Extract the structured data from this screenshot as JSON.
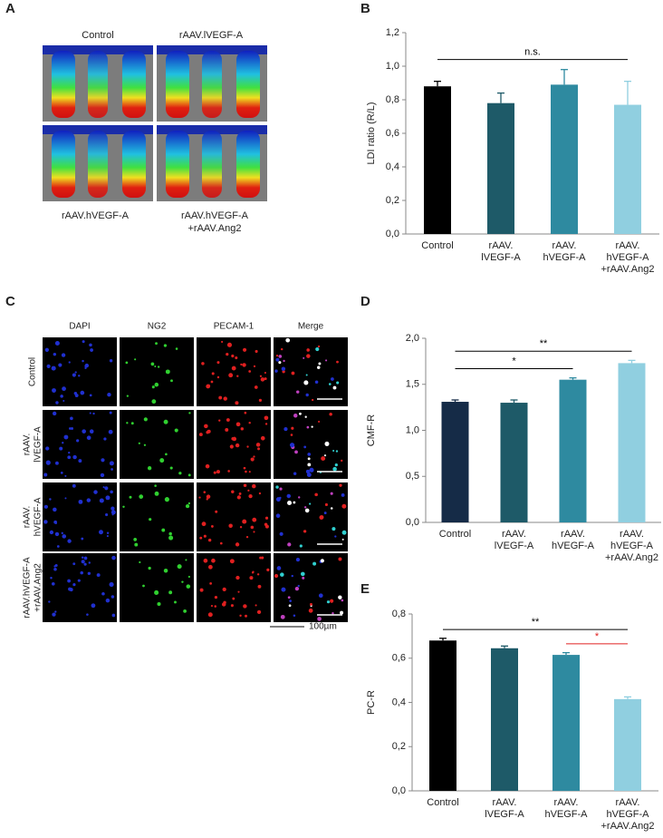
{
  "panel_a": {
    "label": "A",
    "top_labels": [
      "Control",
      "rAAV.lVEGF-A"
    ],
    "bottom_labels": [
      [
        "rAAV.hVEGF-A"
      ],
      [
        "rAAV.hVEGF-A",
        "+rAAV.Ang2"
      ]
    ]
  },
  "panel_c": {
    "label": "C",
    "columns": [
      "DAPI",
      "NG2",
      "PECAM-1",
      "Merge"
    ],
    "rows": [
      [
        "Control"
      ],
      [
        "rAAV.",
        "lVEGF-A"
      ],
      [
        "rAAV.",
        "hVEGF-A"
      ],
      [
        "rAAV.hVEGF-A",
        "+rAAV.Ang2"
      ]
    ],
    "scale_label": "100µm"
  },
  "chart_data": [
    {
      "type": "bar",
      "label": "B",
      "y_label": "LDI ratio (R/L)",
      "categories": [
        [
          "Control"
        ],
        [
          "rAAV.",
          "lVEGF-A"
        ],
        [
          "rAAV.",
          "hVEGF-A"
        ],
        [
          "rAAV.",
          "hVEGF-A",
          "+rAAV.Ang2"
        ]
      ],
      "values": [
        0.88,
        0.78,
        0.89,
        0.77
      ],
      "errors": [
        0.03,
        0.06,
        0.09,
        0.14
      ],
      "colors": [
        "#000000",
        "#1e5a68",
        "#2e8aa0",
        "#90cfe0"
      ],
      "ylim": [
        0,
        1.2
      ],
      "yticks": [
        {
          "value": 0,
          "label": "0,0"
        },
        {
          "value": 0.2,
          "label": "0,2"
        },
        {
          "value": 0.4,
          "label": "0,4"
        },
        {
          "value": 0.6,
          "label": "0,6"
        },
        {
          "value": 0.8,
          "label": "0,8"
        },
        {
          "value": 1,
          "label": "1,0"
        },
        {
          "value": 1.2,
          "label": "1,2"
        }
      ],
      "annotations": [
        {
          "text": "n.s.",
          "from": 0,
          "to": 3,
          "color": "#000000"
        }
      ]
    },
    {
      "type": "bar",
      "label": "D",
      "y_label": "CMF-R",
      "categories": [
        [
          "Control"
        ],
        [
          "rAAV.",
          "lVEGF-A"
        ],
        [
          "rAAV.",
          "hVEGF-A"
        ],
        [
          "rAAV.",
          "hVEGF-A",
          "+rAAV.Ang2"
        ]
      ],
      "values": [
        1.31,
        1.3,
        1.55,
        1.73
      ],
      "errors": [
        0.02,
        0.03,
        0.02,
        0.03
      ],
      "colors": [
        "#152b47",
        "#1e5a68",
        "#2e8aa0",
        "#90cfe0"
      ],
      "ylim": [
        0,
        2
      ],
      "yticks": [
        {
          "value": 0,
          "label": "0,0"
        },
        {
          "value": 0.5,
          "label": "0,5"
        },
        {
          "value": 1,
          "label": "1,0"
        },
        {
          "value": 1.5,
          "label": "1,5"
        },
        {
          "value": 2,
          "label": "2,0"
        }
      ],
      "annotations": [
        {
          "text": "*",
          "from": 0,
          "to": 2,
          "color": "#000000"
        },
        {
          "text": "**",
          "from": 0,
          "to": 3,
          "color": "#000000"
        }
      ]
    },
    {
      "type": "bar",
      "label": "E",
      "y_label": "PC-R",
      "categories": [
        [
          "Control"
        ],
        [
          "rAAV.",
          "lVEGF-A"
        ],
        [
          "rAAV.",
          "hVEGF-A"
        ],
        [
          "rAAV.",
          "hVEGF-A",
          "+rAAV.Ang2"
        ]
      ],
      "values": [
        0.68,
        0.645,
        0.615,
        0.415
      ],
      "errors": [
        0.01,
        0.01,
        0.01,
        0.01
      ],
      "colors": [
        "#000000",
        "#1e5a68",
        "#2e8aa0",
        "#90cfe0"
      ],
      "ylim": [
        0,
        0.8
      ],
      "yticks": [
        {
          "value": 0,
          "label": "0,0"
        },
        {
          "value": 0.2,
          "label": "0,2"
        },
        {
          "value": 0.4,
          "label": "0,4"
        },
        {
          "value": 0.6,
          "label": "0,6"
        },
        {
          "value": 0.8,
          "label": "0,8"
        }
      ],
      "annotations": [
        {
          "text": "**",
          "from": 0,
          "to": 3,
          "color": "#000000"
        },
        {
          "text": "*",
          "from": 2,
          "to": 3,
          "color": "#e02020"
        }
      ]
    }
  ]
}
